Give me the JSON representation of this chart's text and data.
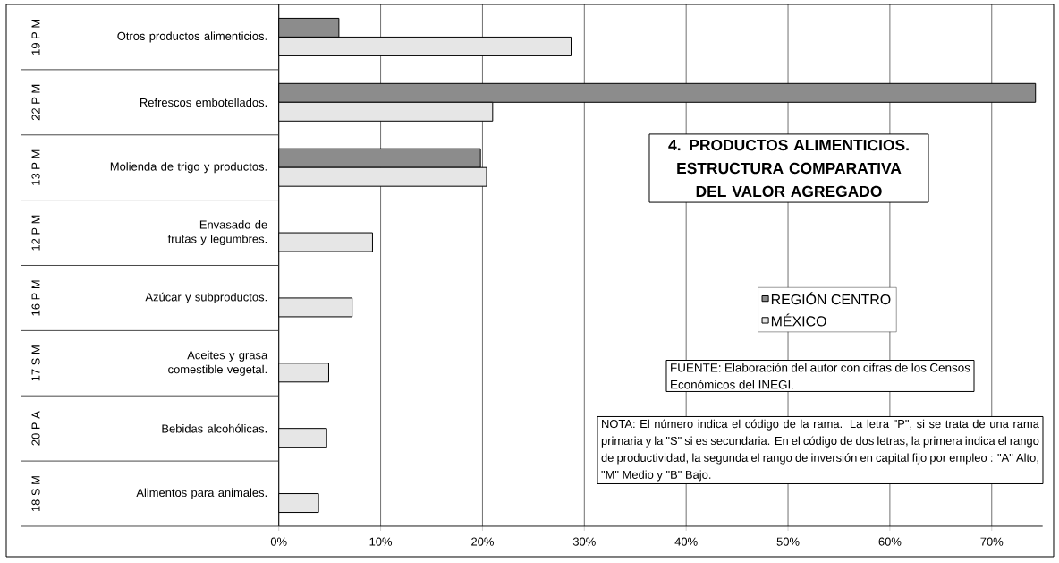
{
  "chart_data": {
    "type": "bar",
    "orientation": "horizontal",
    "title": "4. PRODUCTOS ALIMENTICIOS. ESTRUCTURA COMPARATIVA DEL VALOR AGREGADO",
    "categories": [
      "Otros productos alimenticios.",
      "Refrescos embotellados.",
      "Molienda de trigo y productos.",
      "Envasado de frutas y legumbres.",
      "Azúcar y subproductos.",
      "Aceites y grasa comestible vegetal.",
      "Bebidas alcohólicas.",
      "Alimentos para animales."
    ],
    "series": [
      {
        "name": "REGIÓN CENTRO",
        "color": "#8c8c8c",
        "values": [
          5.9,
          74.3,
          19.8,
          null,
          null,
          null,
          null,
          null
        ]
      },
      {
        "name": "MÉXICO",
        "color": "#e6e6e6",
        "values": [
          28.7,
          21.0,
          20.4,
          9.2,
          7.2,
          4.9,
          4.7,
          3.9
        ]
      }
    ],
    "xlim": [
      0,
      75
    ],
    "xticks": [
      {
        "value": 0,
        "label": "0%"
      },
      {
        "value": 10,
        "label": "10%"
      },
      {
        "value": 20,
        "label": "20%"
      },
      {
        "value": 30,
        "label": "30%"
      },
      {
        "value": 40,
        "label": "40%"
      },
      {
        "value": 50,
        "label": "50%"
      },
      {
        "value": 60,
        "label": "60%"
      },
      {
        "value": 70,
        "label": "70%"
      }
    ],
    "grid": "x",
    "legend": "right",
    "annotations": [
      "FUENTE: Elaboración del autor con cifras de los Censos Económicos del INEGI.",
      "NOTA: El número indica el código de la rama. La letra \"P\", si se trata de una rama primaria y la \"S\" si es secundaria. En el código de dos letras, la primera indica el rango de productividad, la segunda el rango de inversión en capital fijo por empleo : \"A\" Alto, \"M\" Medio y \"B\" Bajo.",
      "19 P M",
      "22 P M",
      "13 P M",
      "12 P M",
      "16 P M",
      "17 S M",
      "20 P A",
      "18 S M"
    ]
  }
}
